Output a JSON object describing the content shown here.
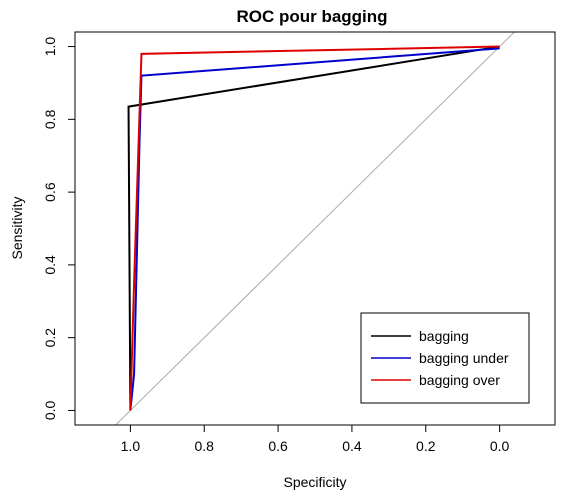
{
  "chart_data": {
    "type": "line",
    "title": "ROC pour bagging",
    "xlabel": "Specificity",
    "ylabel": "Sensitivity",
    "xlim": [
      1.15,
      -0.15
    ],
    "ylim": [
      -0.04,
      1.04
    ],
    "x_reversed": true,
    "x_ticks": [
      1.0,
      0.8,
      0.6,
      0.4,
      0.2,
      0.0
    ],
    "x_tick_labels": [
      "1.0",
      "0.8",
      "0.6",
      "0.4",
      "0.2",
      "0.0"
    ],
    "y_ticks": [
      0.0,
      0.2,
      0.4,
      0.6,
      0.8,
      1.0
    ],
    "y_tick_labels": [
      "0.0",
      "0.2",
      "0.4",
      "0.6",
      "0.8",
      "1.0"
    ],
    "reference_line": {
      "color": "#aaaaaa",
      "points": [
        [
          1.0,
          0.0
        ],
        [
          0.0,
          1.0
        ]
      ]
    },
    "legend_position": "bottom-right",
    "series": [
      {
        "name": "bagging",
        "color": "#000000",
        "points": [
          [
            1.0,
            0.0
          ],
          [
            1.005,
            0.835
          ],
          [
            0.0,
            1.0
          ]
        ]
      },
      {
        "name": "bagging under",
        "color": "#0000cc",
        "points": [
          [
            1.0,
            0.0
          ],
          [
            0.99,
            0.1
          ],
          [
            0.975,
            0.75
          ],
          [
            0.97,
            0.92
          ],
          [
            0.0,
            0.995
          ]
        ]
      },
      {
        "name": "bagging over",
        "color": "#dd0000",
        "points": [
          [
            1.0,
            0.0
          ],
          [
            0.99,
            0.35
          ],
          [
            0.97,
            0.98
          ],
          [
            0.0,
            1.0
          ]
        ]
      }
    ]
  }
}
